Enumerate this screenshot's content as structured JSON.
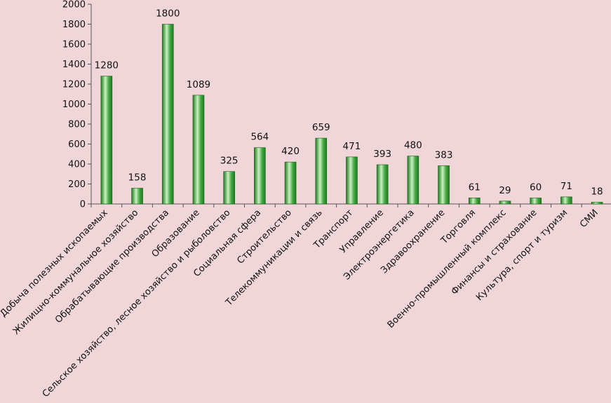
{
  "chart_data": {
    "type": "bar",
    "title": "",
    "xlabel": "",
    "ylabel": "",
    "ylim": [
      0,
      2000
    ],
    "yticks": [
      0,
      200,
      400,
      600,
      800,
      1000,
      1200,
      1400,
      1600,
      1800,
      2000
    ],
    "grid": false,
    "legend": "none",
    "categories": [
      "Добыча полезных ископаемых",
      "Жилищно-коммунальное хозяйство",
      "Обрабатывающие производства",
      "Образование",
      "Сельское хозяйство, лесное хозяйство и рыболовство",
      "Социальная сфера",
      "Строительство",
      "Телекоммуникации и связь",
      "Транспорт",
      "Управление",
      "Электроэнергетика",
      "Здравоохранение",
      "Торговля",
      "Военно-промышленный комплекс",
      "Финансы и страхование",
      "Культура, спорт и туризм",
      "СМИ"
    ],
    "values": [
      1280,
      158,
      1800,
      1089,
      325,
      564,
      420,
      659,
      471,
      393,
      480,
      383,
      61,
      29,
      60,
      71,
      18
    ],
    "data_labels": [
      "1280",
      "158",
      "1800",
      "1089",
      "325",
      "564",
      "420",
      "659",
      "471",
      "393",
      "480",
      "383",
      "61",
      "29",
      "60",
      "71",
      "18"
    ],
    "colors": {
      "background": "#f0d6d8",
      "bar_dark": "#1e7a1e",
      "bar_mid": "#43a843",
      "bar_light": "#c9f0c0",
      "bar_border": "#1a5f1a",
      "axis": "#555555",
      "text": "#111111"
    }
  }
}
